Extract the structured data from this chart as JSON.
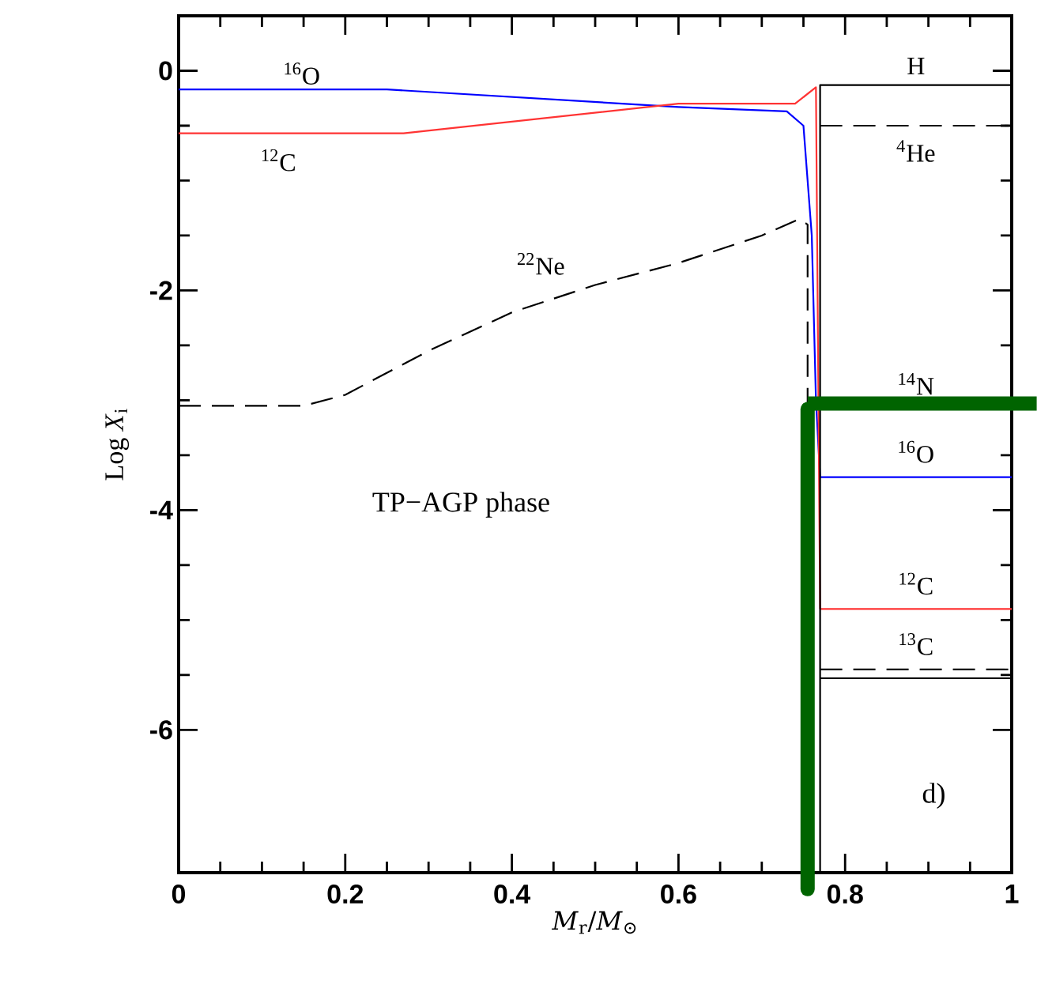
{
  "chart_data": {
    "type": "line",
    "xlabel": "*M*$_{r}$/*M*$_{⊙}$",
    "ylabel": "Log *X*$_{i}$",
    "xlim": [
      0,
      1
    ],
    "ylim": [
      -7.3,
      0.5
    ],
    "xticks": [
      0,
      0.2,
      0.4,
      0.6,
      0.8,
      1
    ],
    "yticks": [
      -6,
      -4,
      -2,
      0
    ],
    "grid": false,
    "marker": "none",
    "series": [
      {
        "name": "$^{16}$O",
        "color": "#0000ff",
        "line_style": "solid",
        "x": [
          0,
          0.25,
          0.6,
          0.73,
          0.75,
          0.76,
          0.765,
          0.77
        ],
        "values": [
          -0.17,
          -0.17,
          -0.33,
          -0.37,
          -0.5,
          -1.5,
          -3.0,
          -3.7
        ]
      },
      {
        "name": "$^{16}$O",
        "color": "#0000ff",
        "line_style": "solid",
        "x": [
          0.77,
          1
        ],
        "values": [
          -3.7,
          -3.7
        ]
      },
      {
        "name": "$^{12}$C",
        "color": "#ff3333",
        "line_style": "solid",
        "x": [
          0,
          0.27,
          0.6,
          0.74,
          0.765,
          0.77
        ],
        "values": [
          -0.57,
          -0.57,
          -0.3,
          -0.3,
          -0.15,
          -4.9
        ]
      },
      {
        "name": "$^{12}$C",
        "color": "#ff3333",
        "line_style": "solid",
        "x": [
          0.77,
          1
        ],
        "values": [
          -4.9,
          -4.9
        ]
      },
      {
        "name": "H",
        "color": "#000000",
        "line_style": "solid",
        "x": [
          0.77,
          0.77,
          1
        ],
        "values": [
          -7.3,
          -0.13,
          -0.13
        ]
      },
      {
        "name": "$^{4}$He",
        "color": "#000000",
        "line_style": "dashed",
        "x": [
          0.77,
          1
        ],
        "values": [
          -0.5,
          -0.5
        ]
      },
      {
        "name": "$^{22}$Ne",
        "color": "#000000",
        "line_style": "dashed",
        "x": [
          0,
          0.15,
          0.2,
          0.3,
          0.4,
          0.5,
          0.6,
          0.7,
          0.745,
          0.755,
          0.755
        ],
        "values": [
          -3.05,
          -3.05,
          -2.95,
          -2.55,
          -2.2,
          -1.95,
          -1.75,
          -1.5,
          -1.35,
          -1.4,
          -7.3
        ]
      },
      {
        "name": "$^{13}$C",
        "color": "#000000",
        "line_style": "dashed",
        "x": [
          0.77,
          1
        ],
        "values": [
          -5.45,
          -5.45
        ]
      },
      {
        "color": "#000000",
        "line_style": "solid",
        "x": [
          0.77,
          1
        ],
        "values": [
          -5.53,
          -5.53
        ]
      }
    ],
    "annotations": [
      "$^{14}$N",
      "TP−AGP phase",
      "d)"
    ]
  }
}
